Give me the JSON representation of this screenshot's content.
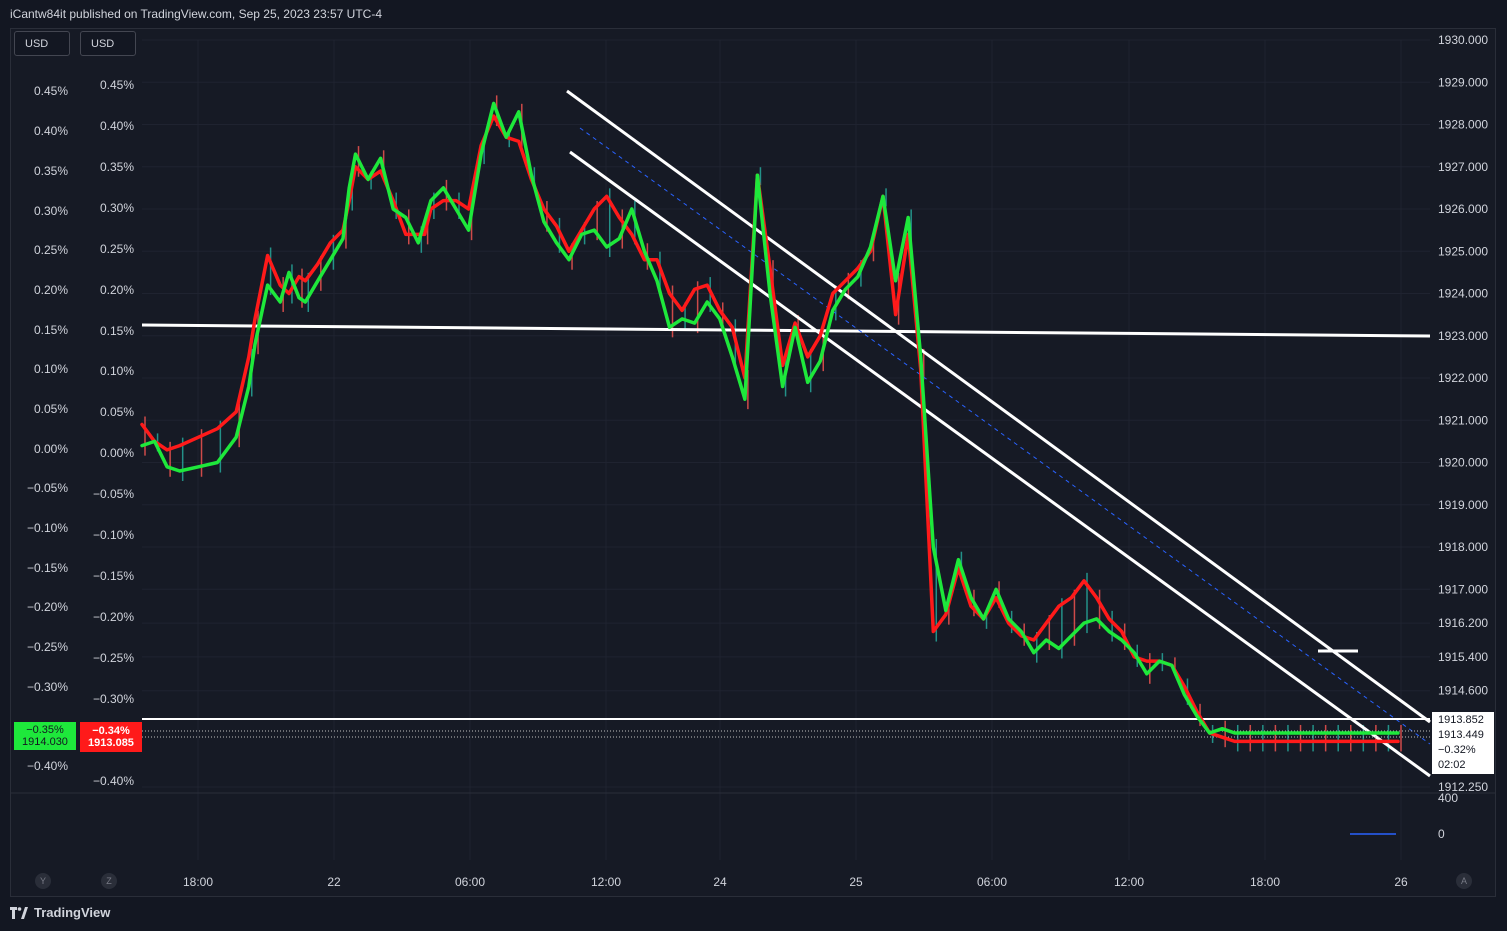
{
  "header": {
    "publisher": "iCantw84it published on TradingView.com, Sep 25, 2023 23:57 UTC-4"
  },
  "currency_buttons": [
    "USD",
    "USD"
  ],
  "footer": {
    "brand": "TradingView",
    "logo_icon": "tradingview-logo-icon"
  },
  "corner_buttons": {
    "left_y": "Y",
    "left_z": "Z",
    "right_auto": "A"
  },
  "tags": {
    "green_pct": "−0.35%",
    "green_price": "1914.030",
    "red_pct": "−0.34%",
    "red_price": "1913.085"
  },
  "price_box": {
    "line1": "1913.852",
    "line2": "1913.449",
    "line3": "−0.32%",
    "line4": "02:02"
  },
  "colors": {
    "background": "#131722",
    "grid": "#1f2330",
    "green_series": "#1ee83b",
    "red_series": "#ff1a1a",
    "white_lines": "#ffffff",
    "midline": "#2962ff"
  },
  "chart_data": {
    "type": "line",
    "x_tick_labels": [
      "18:00",
      "22",
      "06:00",
      "12:00",
      "24",
      "25",
      "06:00",
      "12:00",
      "18:00",
      "26"
    ],
    "y_right_ticks": [
      "1930.000",
      "1929.000",
      "1928.000",
      "1927.000",
      "1926.000",
      "1925.000",
      "1924.000",
      "1923.000",
      "1922.000",
      "1921.000",
      "1920.000",
      "1919.000",
      "1918.000",
      "1917.000",
      "1916.200",
      "1915.400",
      "1914.600",
      "1912.250"
    ],
    "y_right_values": [
      1930,
      1929,
      1928,
      1927,
      1926,
      1925,
      1924,
      1923,
      1922,
      1921,
      1920,
      1919,
      1918,
      1917,
      1916.2,
      1915.4,
      1914.6,
      1912.25
    ],
    "y_left1_ticks": [
      "0.45%",
      "0.40%",
      "0.35%",
      "0.30%",
      "0.25%",
      "0.20%",
      "0.15%",
      "0.10%",
      "0.05%",
      "0.00%",
      "−0.05%",
      "−0.10%",
      "−0.15%",
      "−0.20%",
      "−0.25%",
      "−0.30%",
      "−0.40%"
    ],
    "y_left2_ticks": [
      "0.45%",
      "0.40%",
      "0.35%",
      "0.30%",
      "0.25%",
      "0.20%",
      "0.15%",
      "0.10%",
      "0.05%",
      "0.00%",
      "−0.05%",
      "−0.10%",
      "−0.15%",
      "−0.20%",
      "−0.25%",
      "−0.30%",
      "−0.40%"
    ],
    "volume_ticks": [
      "400",
      "0"
    ],
    "series": [
      {
        "color": "green",
        "x": [
          0,
          0.01,
          0.02,
          0.03,
          0.045,
          0.06,
          0.075,
          0.085,
          0.09,
          0.1,
          0.11,
          0.117,
          0.125,
          0.13,
          0.14,
          0.15,
          0.16,
          0.165,
          0.17,
          0.18,
          0.19,
          0.2,
          0.21,
          0.22,
          0.225,
          0.23,
          0.24,
          0.25,
          0.26,
          0.27,
          0.28,
          0.29,
          0.3,
          0.31,
          0.32,
          0.33,
          0.34,
          0.35,
          0.36,
          0.37,
          0.38,
          0.39,
          0.4,
          0.41,
          0.42,
          0.43,
          0.44,
          0.45,
          0.46,
          0.47,
          0.48,
          0.49,
          0.5,
          0.51,
          0.52,
          0.53,
          0.54,
          0.55,
          0.56,
          0.57,
          0.58,
          0.59,
          0.6,
          0.61,
          0.62,
          0.63,
          0.64,
          0.65,
          0.66,
          0.67,
          0.68,
          0.69,
          0.7,
          0.71,
          0.72,
          0.73,
          0.74,
          0.75,
          0.76,
          0.77,
          0.78,
          0.79,
          0.8,
          0.81,
          0.82,
          0.83,
          0.84,
          0.85,
          0.86,
          0.87,
          0.88,
          0.89,
          0.9,
          0.91,
          0.92,
          0.93,
          0.94,
          0.95,
          0.96,
          0.97,
          0.98,
          0.99,
          1.0
        ],
        "y": [
          1920.4,
          1920.5,
          1919.9,
          1919.8,
          1919.9,
          1920.0,
          1920.6,
          1921.8,
          1922.8,
          1924.2,
          1923.8,
          1924.5,
          1923.9,
          1923.8,
          1924.3,
          1924.8,
          1925.3,
          1926.5,
          1927.3,
          1926.7,
          1927.2,
          1926.0,
          1925.8,
          1925.2,
          1925.7,
          1926.2,
          1926.5,
          1926.0,
          1925.5,
          1927.3,
          1928.5,
          1927.7,
          1928.3,
          1926.8,
          1925.7,
          1925.2,
          1924.8,
          1925.4,
          1925.5,
          1925.1,
          1925.3,
          1926.0,
          1925.0,
          1924.3,
          1923.2,
          1923.4,
          1923.3,
          1923.8,
          1923.4,
          1922.5,
          1921.5,
          1926.8,
          1924.0,
          1921.8,
          1923.2,
          1921.9,
          1922.4,
          1923.6,
          1924.1,
          1924.4,
          1925.1,
          1926.3,
          1924.3,
          1925.8,
          1922.5,
          1918.0,
          1916.5,
          1917.7,
          1916.8,
          1916.3,
          1917.0,
          1916.3,
          1916.0,
          1915.5,
          1915.8,
          1915.6,
          1915.9,
          1916.2,
          1916.3,
          1916.0,
          1915.8,
          1915.5,
          1915.0,
          1915.3,
          1915.2,
          1914.5,
          1914.0,
          1913.6,
          1913.7,
          1913.6,
          1913.6,
          1913.6,
          1913.6,
          1913.6,
          1913.6,
          1913.6,
          1913.6,
          1913.6,
          1913.6,
          1913.6,
          1913.6,
          1913.6,
          1913.6
        ]
      },
      {
        "color": "red",
        "x": [
          0,
          0.01,
          0.02,
          0.03,
          0.045,
          0.06,
          0.075,
          0.085,
          0.09,
          0.1,
          0.11,
          0.117,
          0.125,
          0.13,
          0.14,
          0.15,
          0.16,
          0.165,
          0.17,
          0.18,
          0.19,
          0.2,
          0.21,
          0.22,
          0.225,
          0.23,
          0.24,
          0.25,
          0.26,
          0.27,
          0.28,
          0.29,
          0.3,
          0.31,
          0.32,
          0.33,
          0.34,
          0.35,
          0.36,
          0.37,
          0.38,
          0.39,
          0.4,
          0.41,
          0.42,
          0.43,
          0.44,
          0.45,
          0.46,
          0.47,
          0.48,
          0.49,
          0.5,
          0.51,
          0.52,
          0.53,
          0.54,
          0.55,
          0.56,
          0.57,
          0.58,
          0.59,
          0.6,
          0.61,
          0.62,
          0.63,
          0.64,
          0.65,
          0.66,
          0.67,
          0.68,
          0.69,
          0.7,
          0.71,
          0.72,
          0.73,
          0.74,
          0.75,
          0.76,
          0.77,
          0.78,
          0.79,
          0.8,
          0.81,
          0.82,
          0.83,
          0.84,
          0.85,
          0.86,
          0.87,
          0.88,
          0.89,
          0.9,
          0.91,
          0.92,
          0.93,
          0.94,
          0.95,
          0.96,
          0.97,
          0.98,
          0.99,
          1.0
        ],
        "y": [
          1920.9,
          1920.5,
          1920.3,
          1920.4,
          1920.6,
          1920.8,
          1921.2,
          1922.5,
          1923.4,
          1924.9,
          1924.2,
          1924.0,
          1924.4,
          1924.3,
          1924.7,
          1925.2,
          1925.5,
          1926.2,
          1927.0,
          1926.7,
          1926.9,
          1926.2,
          1925.4,
          1925.4,
          1925.4,
          1926.0,
          1926.2,
          1926.2,
          1926.0,
          1927.5,
          1928.2,
          1927.7,
          1927.6,
          1926.7,
          1926.0,
          1925.6,
          1925.0,
          1925.5,
          1926.0,
          1926.3,
          1925.8,
          1925.4,
          1924.8,
          1924.8,
          1924.0,
          1923.6,
          1924.1,
          1924.2,
          1923.6,
          1923.2,
          1922.0,
          1926.8,
          1924.6,
          1922.3,
          1923.3,
          1922.5,
          1923.0,
          1924.0,
          1924.3,
          1924.6,
          1925.0,
          1926.3,
          1923.5,
          1925.4,
          1922.2,
          1916.0,
          1916.4,
          1917.5,
          1916.6,
          1916.3,
          1916.8,
          1916.2,
          1915.9,
          1915.8,
          1916.2,
          1916.6,
          1916.8,
          1917.2,
          1916.8,
          1916.3,
          1916.0,
          1915.4,
          1915.3,
          1915.3,
          1915.2,
          1914.7,
          1914.1,
          1913.6,
          1913.5,
          1913.4,
          1913.4,
          1913.4,
          1913.4,
          1913.4,
          1913.4,
          1913.4,
          1913.4,
          1913.4,
          1913.4,
          1913.4,
          1913.4,
          1913.4,
          1913.4
        ]
      }
    ],
    "grid": true
  }
}
